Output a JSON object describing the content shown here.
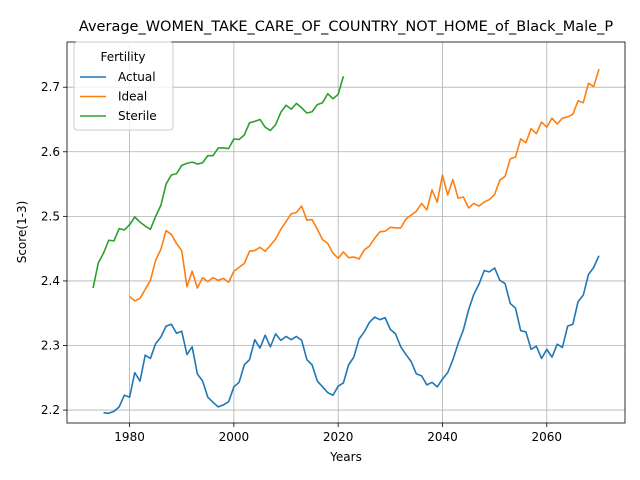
{
  "chart_data": {
    "type": "line",
    "title": "Average_WOMEN_TAKE_CARE_OF_COUNTRY_NOT_HOME_of_Black_Male_P",
    "xlabel": "Years",
    "ylabel": "Score(1-3)",
    "xlim": [
      1968,
      2075
    ],
    "ylim": [
      2.18,
      2.77
    ],
    "xticks": [
      1980,
      2000,
      2020,
      2040,
      2060
    ],
    "yticks": [
      2.2,
      2.3,
      2.4,
      2.5,
      2.6,
      2.7
    ],
    "grid": true,
    "legend": {
      "title": "Fertility",
      "placement": "top-left"
    },
    "series": [
      {
        "name": "Actual",
        "color": "#1f77b4",
        "points": [
          [
            1975,
            2.196
          ],
          [
            1976,
            2.195
          ],
          [
            1977,
            2.198
          ],
          [
            1978,
            2.205
          ],
          [
            1979,
            2.223
          ],
          [
            1980,
            2.22
          ],
          [
            1981,
            2.258
          ],
          [
            1982,
            2.245
          ],
          [
            1983,
            2.285
          ],
          [
            1984,
            2.28
          ],
          [
            1985,
            2.303
          ],
          [
            1986,
            2.313
          ],
          [
            1987,
            2.33
          ],
          [
            1988,
            2.333
          ],
          [
            1989,
            2.319
          ],
          [
            1990,
            2.322
          ],
          [
            1991,
            2.286
          ],
          [
            1992,
            2.298
          ],
          [
            1993,
            2.256
          ],
          [
            1994,
            2.245
          ],
          [
            1995,
            2.22
          ],
          [
            1996,
            2.212
          ],
          [
            1997,
            2.205
          ],
          [
            1998,
            2.208
          ],
          [
            1999,
            2.213
          ],
          [
            2000,
            2.236
          ],
          [
            2001,
            2.243
          ],
          [
            2002,
            2.27
          ],
          [
            2003,
            2.278
          ],
          [
            2004,
            2.309
          ],
          [
            2005,
            2.296
          ],
          [
            2006,
            2.316
          ],
          [
            2007,
            2.298
          ],
          [
            2008,
            2.318
          ],
          [
            2009,
            2.308
          ],
          [
            2010,
            2.314
          ],
          [
            2011,
            2.309
          ],
          [
            2012,
            2.314
          ],
          [
            2013,
            2.308
          ],
          [
            2014,
            2.278
          ],
          [
            2015,
            2.27
          ],
          [
            2016,
            2.245
          ],
          [
            2017,
            2.236
          ],
          [
            2018,
            2.227
          ],
          [
            2019,
            2.223
          ],
          [
            2020,
            2.237
          ],
          [
            2021,
            2.242
          ],
          [
            2022,
            2.27
          ],
          [
            2023,
            2.282
          ],
          [
            2024,
            2.31
          ],
          [
            2025,
            2.321
          ],
          [
            2026,
            2.336
          ],
          [
            2027,
            2.344
          ],
          [
            2028,
            2.34
          ],
          [
            2029,
            2.343
          ],
          [
            2030,
            2.325
          ],
          [
            2031,
            2.318
          ],
          [
            2032,
            2.298
          ],
          [
            2033,
            2.286
          ],
          [
            2034,
            2.275
          ],
          [
            2035,
            2.256
          ],
          [
            2036,
            2.253
          ],
          [
            2037,
            2.239
          ],
          [
            2038,
            2.243
          ],
          [
            2039,
            2.236
          ],
          [
            2040,
            2.248
          ],
          [
            2041,
            2.258
          ],
          [
            2042,
            2.278
          ],
          [
            2043,
            2.303
          ],
          [
            2044,
            2.324
          ],
          [
            2045,
            2.355
          ],
          [
            2046,
            2.379
          ],
          [
            2047,
            2.395
          ],
          [
            2048,
            2.416
          ],
          [
            2049,
            2.414
          ],
          [
            2050,
            2.42
          ],
          [
            2051,
            2.401
          ],
          [
            2052,
            2.396
          ],
          [
            2053,
            2.365
          ],
          [
            2054,
            2.358
          ],
          [
            2055,
            2.323
          ],
          [
            2056,
            2.321
          ],
          [
            2057,
            2.294
          ],
          [
            2058,
            2.299
          ],
          [
            2059,
            2.28
          ],
          [
            2060,
            2.294
          ],
          [
            2061,
            2.282
          ],
          [
            2062,
            2.302
          ],
          [
            2063,
            2.297
          ],
          [
            2064,
            2.33
          ],
          [
            2065,
            2.333
          ],
          [
            2066,
            2.368
          ],
          [
            2067,
            2.378
          ],
          [
            2068,
            2.41
          ],
          [
            2069,
            2.421
          ],
          [
            2070,
            2.439
          ]
        ]
      },
      {
        "name": "Ideal",
        "color": "#ff7f0e",
        "points": [
          [
            1980,
            2.376
          ],
          [
            1981,
            2.369
          ],
          [
            1982,
            2.373
          ],
          [
            1983,
            2.387
          ],
          [
            1984,
            2.401
          ],
          [
            1985,
            2.432
          ],
          [
            1986,
            2.449
          ],
          [
            1987,
            2.478
          ],
          [
            1988,
            2.472
          ],
          [
            1989,
            2.458
          ],
          [
            1990,
            2.447
          ],
          [
            1991,
            2.391
          ],
          [
            1992,
            2.415
          ],
          [
            1993,
            2.389
          ],
          [
            1994,
            2.405
          ],
          [
            1995,
            2.399
          ],
          [
            1996,
            2.405
          ],
          [
            1997,
            2.401
          ],
          [
            1998,
            2.404
          ],
          [
            1999,
            2.398
          ],
          [
            2000,
            2.415
          ],
          [
            2001,
            2.421
          ],
          [
            2002,
            2.427
          ],
          [
            2003,
            2.446
          ],
          [
            2004,
            2.447
          ],
          [
            2005,
            2.452
          ],
          [
            2006,
            2.446
          ],
          [
            2007,
            2.455
          ],
          [
            2008,
            2.465
          ],
          [
            2009,
            2.48
          ],
          [
            2010,
            2.492
          ],
          [
            2011,
            2.504
          ],
          [
            2012,
            2.506
          ],
          [
            2013,
            2.516
          ],
          [
            2014,
            2.494
          ],
          [
            2015,
            2.495
          ],
          [
            2016,
            2.48
          ],
          [
            2017,
            2.464
          ],
          [
            2018,
            2.458
          ],
          [
            2019,
            2.443
          ],
          [
            2020,
            2.435
          ],
          [
            2021,
            2.445
          ],
          [
            2022,
            2.436
          ],
          [
            2023,
            2.437
          ],
          [
            2024,
            2.434
          ],
          [
            2025,
            2.448
          ],
          [
            2026,
            2.454
          ],
          [
            2027,
            2.466
          ],
          [
            2028,
            2.476
          ],
          [
            2029,
            2.477
          ],
          [
            2030,
            2.483
          ],
          [
            2031,
            2.482
          ],
          [
            2032,
            2.482
          ],
          [
            2033,
            2.496
          ],
          [
            2034,
            2.502
          ],
          [
            2035,
            2.508
          ],
          [
            2036,
            2.52
          ],
          [
            2037,
            2.51
          ],
          [
            2038,
            2.541
          ],
          [
            2039,
            2.522
          ],
          [
            2040,
            2.564
          ],
          [
            2041,
            2.533
          ],
          [
            2042,
            2.557
          ],
          [
            2043,
            2.528
          ],
          [
            2044,
            2.53
          ],
          [
            2045,
            2.513
          ],
          [
            2046,
            2.52
          ],
          [
            2047,
            2.516
          ],
          [
            2048,
            2.522
          ],
          [
            2049,
            2.526
          ],
          [
            2050,
            2.534
          ],
          [
            2051,
            2.556
          ],
          [
            2052,
            2.562
          ],
          [
            2053,
            2.589
          ],
          [
            2054,
            2.592
          ],
          [
            2055,
            2.62
          ],
          [
            2056,
            2.614
          ],
          [
            2057,
            2.636
          ],
          [
            2058,
            2.628
          ],
          [
            2059,
            2.646
          ],
          [
            2060,
            2.638
          ],
          [
            2061,
            2.652
          ],
          [
            2062,
            2.643
          ],
          [
            2063,
            2.652
          ],
          [
            2064,
            2.654
          ],
          [
            2065,
            2.658
          ],
          [
            2066,
            2.679
          ],
          [
            2067,
            2.676
          ],
          [
            2068,
            2.706
          ],
          [
            2069,
            2.701
          ],
          [
            2070,
            2.728
          ]
        ]
      },
      {
        "name": "Sterile",
        "color": "#2ca02c",
        "points": [
          [
            1973,
            2.389
          ],
          [
            1974,
            2.428
          ],
          [
            1975,
            2.443
          ],
          [
            1976,
            2.463
          ],
          [
            1977,
            2.462
          ],
          [
            1978,
            2.481
          ],
          [
            1979,
            2.479
          ],
          [
            1980,
            2.487
          ],
          [
            1981,
            2.499
          ],
          [
            1982,
            2.491
          ],
          [
            1983,
            2.485
          ],
          [
            1984,
            2.48
          ],
          [
            1985,
            2.5
          ],
          [
            1986,
            2.517
          ],
          [
            1987,
            2.55
          ],
          [
            1988,
            2.564
          ],
          [
            1989,
            2.566
          ],
          [
            1990,
            2.579
          ],
          [
            1991,
            2.582
          ],
          [
            1992,
            2.584
          ],
          [
            1993,
            2.581
          ],
          [
            1994,
            2.583
          ],
          [
            1995,
            2.594
          ],
          [
            1996,
            2.594
          ],
          [
            1997,
            2.606
          ],
          [
            1998,
            2.606
          ],
          [
            1999,
            2.605
          ],
          [
            2000,
            2.62
          ],
          [
            2001,
            2.619
          ],
          [
            2002,
            2.626
          ],
          [
            2003,
            2.645
          ],
          [
            2004,
            2.647
          ],
          [
            2005,
            2.65
          ],
          [
            2006,
            2.638
          ],
          [
            2007,
            2.633
          ],
          [
            2008,
            2.642
          ],
          [
            2009,
            2.661
          ],
          [
            2010,
            2.672
          ],
          [
            2011,
            2.666
          ],
          [
            2012,
            2.675
          ],
          [
            2013,
            2.668
          ],
          [
            2014,
            2.66
          ],
          [
            2015,
            2.662
          ],
          [
            2016,
            2.673
          ],
          [
            2017,
            2.676
          ],
          [
            2018,
            2.69
          ],
          [
            2019,
            2.682
          ],
          [
            2020,
            2.689
          ],
          [
            2021,
            2.717
          ]
        ]
      }
    ]
  }
}
